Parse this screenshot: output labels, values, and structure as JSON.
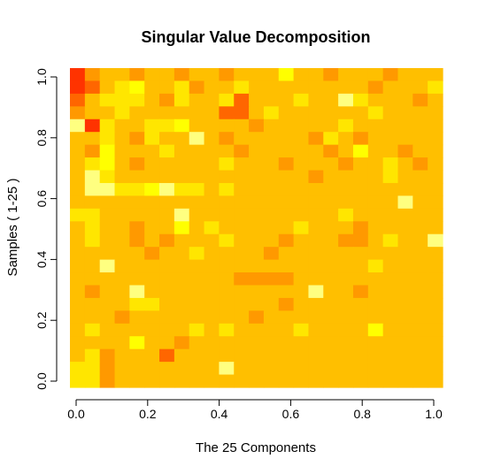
{
  "chart_data": {
    "type": "heatmap",
    "title": "Singular Value Decomposition",
    "xlabel": "The 25 Components",
    "ylabel": "Samples ( 1-25 )",
    "xlim": [
      0,
      1
    ],
    "ylim": [
      0,
      1
    ],
    "x_ticks": [
      "0.0",
      "0.2",
      "0.4",
      "0.6",
      "0.8",
      "1.0"
    ],
    "y_ticks": [
      "0.0",
      "0.2",
      "0.4",
      "0.6",
      "0.8",
      "1.0"
    ],
    "n_rows": 25,
    "n_cols": 25,
    "palette": [
      "#ff0000",
      "#ff3300",
      "#ff6600",
      "#ff9900",
      "#ffbf00",
      "#ffe600",
      "#ffff00",
      "#ffff80"
    ],
    "grid": false,
    "legend": "none",
    "values": [
      [
        1,
        3,
        4,
        4,
        3,
        4,
        4,
        3,
        4,
        4,
        3,
        4,
        4,
        4,
        6,
        4,
        4,
        3,
        4,
        4,
        4,
        3,
        4,
        4,
        4
      ],
      [
        1,
        2,
        4,
        5,
        6,
        4,
        4,
        5,
        3,
        4,
        4,
        5,
        4,
        4,
        4,
        4,
        4,
        4,
        4,
        4,
        3,
        4,
        4,
        4,
        5
      ],
      [
        2,
        4,
        5,
        5,
        5,
        4,
        3,
        5,
        4,
        4,
        5,
        2,
        4,
        4,
        4,
        5,
        4,
        4,
        7,
        5,
        4,
        4,
        4,
        3,
        4
      ],
      [
        3,
        4,
        4,
        5,
        4,
        4,
        4,
        4,
        4,
        4,
        2,
        2,
        4,
        5,
        4,
        4,
        4,
        4,
        4,
        4,
        5,
        4,
        4,
        4,
        4
      ],
      [
        7,
        1,
        5,
        4,
        4,
        5,
        5,
        6,
        4,
        4,
        4,
        4,
        3,
        4,
        4,
        4,
        4,
        4,
        5,
        4,
        4,
        4,
        4,
        4,
        4
      ],
      [
        4,
        4,
        5,
        4,
        3,
        5,
        4,
        4,
        7,
        4,
        3,
        4,
        4,
        4,
        4,
        4,
        3,
        5,
        4,
        3,
        4,
        4,
        4,
        4,
        4
      ],
      [
        4,
        3,
        6,
        4,
        4,
        4,
        5,
        4,
        4,
        4,
        4,
        3,
        4,
        4,
        4,
        4,
        4,
        3,
        4,
        6,
        4,
        4,
        3,
        4,
        4
      ],
      [
        4,
        5,
        6,
        4,
        3,
        4,
        4,
        4,
        4,
        4,
        5,
        4,
        4,
        4,
        3,
        4,
        4,
        4,
        3,
        4,
        4,
        5,
        4,
        3,
        4
      ],
      [
        4,
        7,
        5,
        4,
        4,
        4,
        4,
        4,
        4,
        4,
        4,
        4,
        4,
        4,
        4,
        4,
        3,
        4,
        4,
        4,
        4,
        5,
        4,
        4,
        4
      ],
      [
        4,
        7,
        7,
        5,
        5,
        6,
        7,
        5,
        5,
        4,
        5,
        4,
        4,
        4,
        4,
        4,
        4,
        4,
        4,
        4,
        4,
        4,
        4,
        4,
        4
      ],
      [
        4,
        4,
        4,
        4,
        4,
        4,
        4,
        4,
        4,
        4,
        4,
        4,
        4,
        4,
        4,
        4,
        4,
        4,
        4,
        4,
        4,
        4,
        7,
        4,
        4
      ],
      [
        5,
        5,
        4,
        4,
        4,
        4,
        4,
        7,
        4,
        4,
        4,
        4,
        4,
        4,
        4,
        4,
        4,
        4,
        5,
        4,
        4,
        4,
        4,
        4,
        4
      ],
      [
        4,
        5,
        4,
        4,
        3,
        4,
        4,
        6,
        4,
        5,
        4,
        4,
        4,
        4,
        4,
        5,
        4,
        4,
        4,
        3,
        4,
        4,
        4,
        4,
        4
      ],
      [
        4,
        5,
        4,
        4,
        3,
        4,
        3,
        4,
        4,
        4,
        5,
        4,
        4,
        4,
        3,
        4,
        4,
        4,
        3,
        3,
        4,
        5,
        4,
        4,
        7
      ],
      [
        4,
        4,
        4,
        4,
        4,
        3,
        4,
        4,
        5,
        4,
        4,
        4,
        4,
        3,
        4,
        4,
        4,
        4,
        4,
        4,
        4,
        4,
        4,
        4,
        4
      ],
      [
        4,
        4,
        7,
        4,
        4,
        4,
        4,
        4,
        4,
        4,
        4,
        4,
        4,
        4,
        4,
        4,
        4,
        4,
        4,
        4,
        5,
        4,
        4,
        4,
        4
      ],
      [
        4,
        4,
        4,
        4,
        4,
        4,
        4,
        4,
        4,
        4,
        4,
        3,
        3,
        3,
        3,
        4,
        4,
        4,
        4,
        4,
        4,
        4,
        4,
        4,
        4
      ],
      [
        4,
        3,
        4,
        4,
        7,
        4,
        4,
        4,
        4,
        4,
        4,
        4,
        4,
        4,
        4,
        4,
        7,
        4,
        4,
        3,
        4,
        4,
        4,
        4,
        4
      ],
      [
        4,
        4,
        4,
        4,
        5,
        5,
        4,
        4,
        4,
        4,
        4,
        4,
        4,
        4,
        3,
        4,
        4,
        4,
        4,
        4,
        4,
        4,
        4,
        4,
        4
      ],
      [
        4,
        4,
        4,
        3,
        4,
        4,
        4,
        4,
        4,
        4,
        4,
        4,
        3,
        4,
        4,
        4,
        4,
        4,
        4,
        4,
        4,
        4,
        4,
        4,
        4
      ],
      [
        4,
        5,
        4,
        4,
        4,
        4,
        4,
        4,
        5,
        4,
        5,
        4,
        4,
        4,
        4,
        5,
        4,
        4,
        4,
        4,
        6,
        4,
        4,
        4,
        4
      ],
      [
        4,
        4,
        4,
        4,
        6,
        4,
        4,
        3,
        4,
        4,
        4,
        4,
        4,
        4,
        4,
        4,
        4,
        4,
        4,
        4,
        4,
        4,
        4,
        4,
        4
      ],
      [
        4,
        5,
        3,
        4,
        4,
        4,
        2,
        4,
        4,
        4,
        4,
        4,
        4,
        4,
        4,
        4,
        4,
        4,
        4,
        4,
        4,
        4,
        4,
        4,
        4
      ],
      [
        5,
        5,
        3,
        4,
        4,
        4,
        4,
        4,
        4,
        4,
        7,
        4,
        4,
        4,
        4,
        4,
        4,
        4,
        4,
        4,
        4,
        4,
        4,
        4,
        4
      ],
      [
        5,
        5,
        3,
        4,
        4,
        4,
        4,
        4,
        4,
        4,
        4,
        4,
        4,
        4,
        4,
        4,
        4,
        4,
        4,
        4,
        4,
        4,
        4,
        4,
        4
      ]
    ]
  }
}
